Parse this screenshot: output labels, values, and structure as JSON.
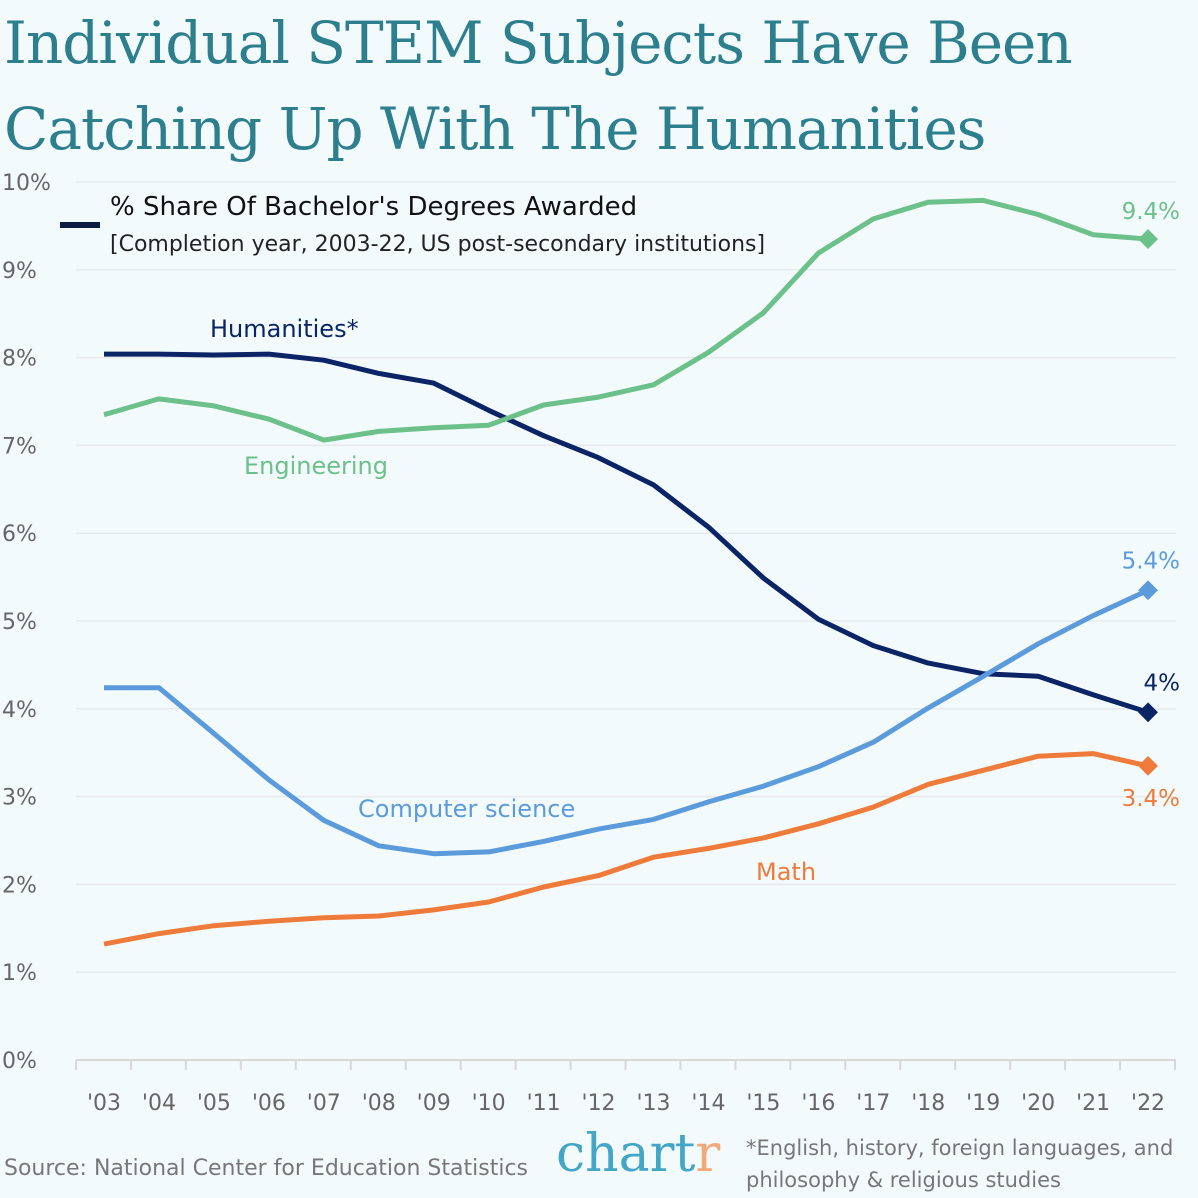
{
  "title_lines": [
    "Individual STEM Subjects Have Been",
    "Catching Up With The Humanities"
  ],
  "legend": {
    "title": "% Share Of Bachelor's Degrees Awarded",
    "subtitle": "[Completion year, 2003-22, US post-secondary institutions]"
  },
  "source": "Source: National Center for Education Statistics",
  "logo": "chartr",
  "footnote_lines": [
    "*English, history, foreign languages, and",
    "philosophy & religious studies"
  ],
  "chart_data": {
    "type": "line",
    "categories": [
      "'03",
      "'04",
      "'05",
      "'06",
      "'07",
      "'08",
      "'09",
      "'10",
      "'11",
      "'12",
      "'13",
      "'14",
      "'15",
      "'16",
      "'17",
      "'18",
      "'19",
      "'20",
      "'21",
      "'22"
    ],
    "ylim": [
      0,
      10
    ],
    "yticks": [
      "0%",
      "1%",
      "2%",
      "3%",
      "4%",
      "5%",
      "6%",
      "7%",
      "8%",
      "9%",
      "10%"
    ],
    "grid": true,
    "series": [
      {
        "name": "Humanities*",
        "color": "#0b2466",
        "end_label": "4%",
        "values": [
          8.04,
          8.04,
          8.03,
          8.04,
          7.97,
          7.82,
          7.71,
          7.4,
          7.11,
          6.86,
          6.55,
          6.07,
          5.49,
          5.02,
          4.72,
          4.52,
          4.4,
          4.37,
          4.16,
          3.96
        ]
      },
      {
        "name": "Engineering",
        "color": "#6cc08a",
        "end_label": "9.4%",
        "values": [
          7.35,
          7.53,
          7.45,
          7.3,
          7.06,
          7.16,
          7.2,
          7.23,
          7.46,
          7.55,
          7.69,
          8.06,
          8.51,
          9.19,
          9.58,
          9.77,
          9.79,
          9.63,
          9.4,
          9.35
        ]
      },
      {
        "name": "Computer science",
        "color": "#5b9bdc",
        "end_label": "5.4%",
        "values": [
          4.24,
          4.24,
          3.72,
          3.19,
          2.73,
          2.44,
          2.35,
          2.37,
          2.49,
          2.63,
          2.74,
          2.94,
          3.12,
          3.34,
          3.62,
          4.01,
          4.37,
          4.74,
          5.06,
          5.35
        ]
      },
      {
        "name": "Math",
        "color": "#ee7b3a",
        "end_label": "3.4%",
        "values": [
          1.32,
          1.44,
          1.53,
          1.58,
          1.62,
          1.64,
          1.71,
          1.8,
          1.97,
          2.1,
          2.31,
          2.41,
          2.53,
          2.69,
          2.88,
          3.14,
          3.3,
          3.46,
          3.49,
          3.35
        ]
      }
    ]
  }
}
